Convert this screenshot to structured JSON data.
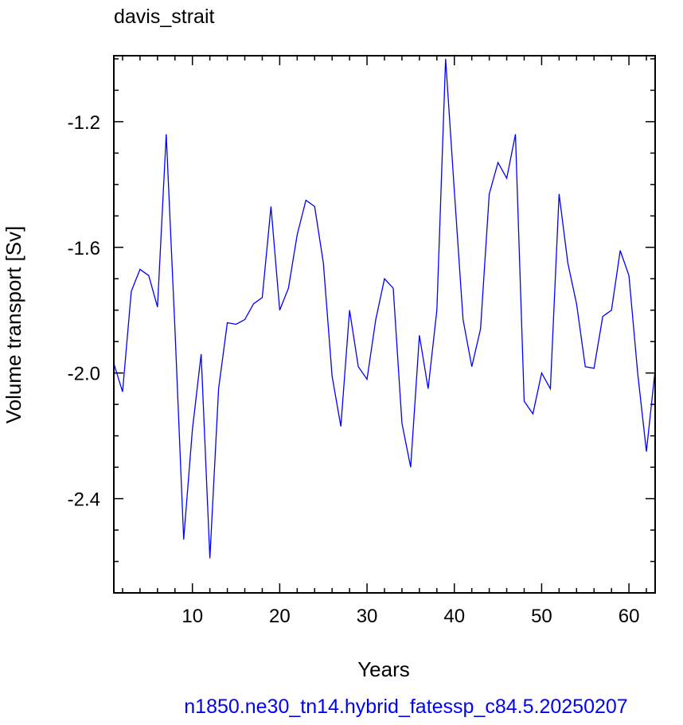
{
  "chart_data": {
    "type": "line",
    "title": "davis_strait",
    "xlabel": "Years",
    "ylabel": "Volume transport [Sv]",
    "subtitle": "n1850.ne30_tn14.hybrid_fatessp_c84.5.20250207",
    "xlim": [
      1,
      63
    ],
    "ylim": [
      -2.7,
      -0.99
    ],
    "xticks": [
      10,
      20,
      30,
      40,
      50,
      60
    ],
    "yticks": [
      -1.2,
      -1.6,
      -2.0,
      -2.4
    ],
    "ytick_labels": [
      "-1.2",
      "-1.6",
      "-2.0",
      "-2.4"
    ],
    "grid": false,
    "line_color": "#0000ff",
    "subtitle_color": "#0000ff",
    "series": [
      {
        "x": [
          1,
          2,
          3,
          4,
          5,
          6,
          7,
          8,
          9,
          10,
          11,
          12,
          13,
          14,
          15,
          16,
          17,
          18,
          19,
          20,
          21,
          22,
          23,
          24,
          25,
          26,
          27,
          28,
          29,
          30,
          31,
          32,
          33,
          34,
          35,
          36,
          37,
          38,
          39,
          40,
          41,
          42,
          43,
          44,
          45,
          46,
          47,
          48,
          49,
          50,
          51,
          52,
          53,
          54,
          55,
          56,
          57,
          58,
          59,
          60,
          61,
          62,
          63
        ],
        "values": [
          -1.97,
          -2.06,
          -1.74,
          -1.67,
          -1.69,
          -1.79,
          -1.24,
          -1.86,
          -2.53,
          -2.18,
          -1.94,
          -2.59,
          -2.05,
          -1.84,
          -1.845,
          -1.83,
          -1.78,
          -1.76,
          -1.47,
          -1.8,
          -1.73,
          -1.56,
          -1.45,
          -1.47,
          -1.65,
          -2.01,
          -2.17,
          -1.8,
          -1.98,
          -2.02,
          -1.83,
          -1.7,
          -1.73,
          -2.16,
          -2.3,
          -1.88,
          -2.05,
          -1.8,
          -1.0,
          -1.42,
          -1.83,
          -1.98,
          -1.86,
          -1.43,
          -1.33,
          -1.38,
          -1.24,
          -2.09,
          -2.13,
          -2.0,
          -2.05,
          -1.43,
          -1.65,
          -1.78,
          -1.98,
          -1.985,
          -1.82,
          -1.8,
          -1.61,
          -1.69,
          -2.0,
          -2.25,
          -1.99
        ]
      }
    ]
  }
}
